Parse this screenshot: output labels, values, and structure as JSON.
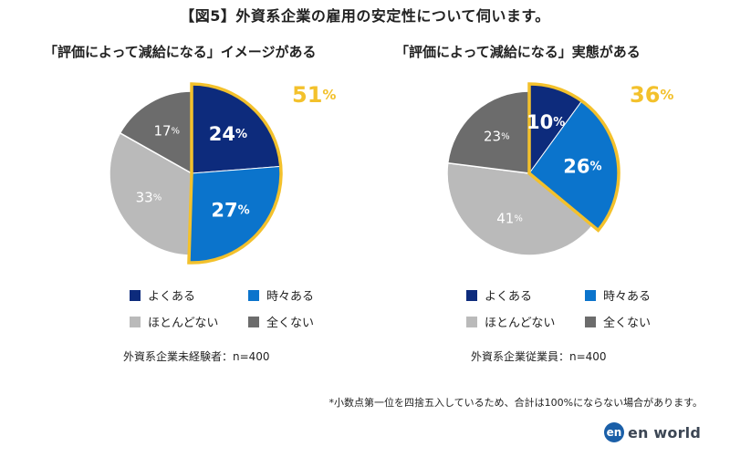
{
  "title": "【図5】外資系企業の雇用の安定性について伺います。",
  "footnote": "*小数点第一位を四捨五入しているため、合計は100%にならない場合があります。",
  "brand": {
    "mark": "en",
    "name": "en world"
  },
  "colors": {
    "yoku": "#0d2b7c",
    "tokidoki": "#0b74cc",
    "hotondo": "#bababa",
    "mattaku": "#6c6c6c",
    "highlight": "#f3c12c"
  },
  "legend": [
    {
      "label": "よくある",
      "color": "#0d2b7c"
    },
    {
      "label": "時々ある",
      "color": "#0b74cc"
    },
    {
      "label": "ほとんどない",
      "color": "#bababa"
    },
    {
      "label": "全くない",
      "color": "#6c6c6c"
    }
  ],
  "chart_data": [
    {
      "type": "pie",
      "title": "「評価によって減給になる」イメージがある",
      "note": "外資系企業未経験者：n=400",
      "categories": [
        "よくある",
        "時々ある",
        "ほとんどない",
        "全くない"
      ],
      "values": [
        24,
        27,
        33,
        17
      ],
      "highlight_total": "51",
      "unit": "%"
    },
    {
      "type": "pie",
      "title": "「評価によって減給になる」実態がある",
      "note": "外資系企業従業員：n=400",
      "categories": [
        "よくある",
        "時々ある",
        "ほとんどない",
        "全くない"
      ],
      "values": [
        10,
        26,
        41,
        23
      ],
      "highlight_total": "36",
      "unit": "%"
    }
  ]
}
